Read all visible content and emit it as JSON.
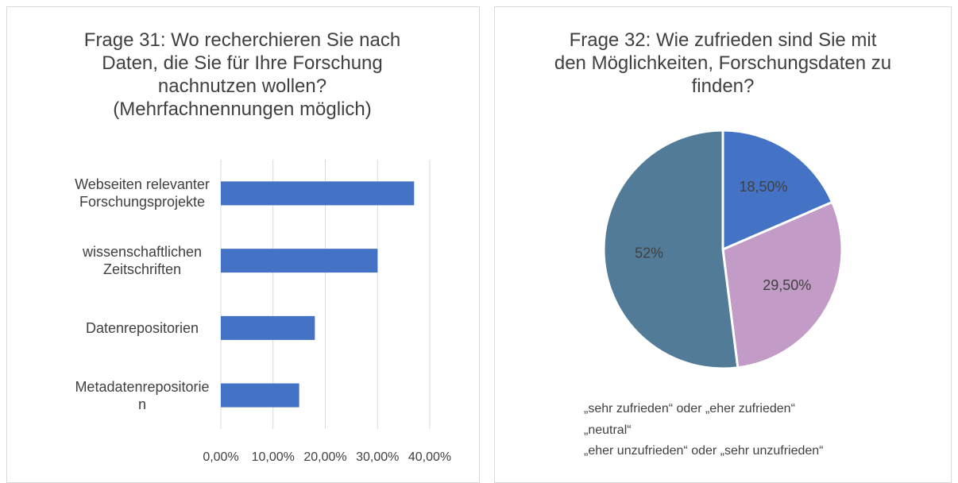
{
  "chart_data": [
    {
      "type": "hbar",
      "title": "Frage 31: Wo recherchieren Sie nach Daten, die Sie für Ihre Forschung nachnutzen wollen? (Mehrfachnennungen möglich)",
      "categories": [
        "Webseiten relevanter Forschungsprojekte",
        "wissenschaftlichen Zeitschriften",
        "Datenrepositorien",
        "Metadatenrepositorien"
      ],
      "values": [
        37,
        30,
        18,
        15
      ],
      "color": "#4472c4",
      "xlim": [
        0,
        40
      ],
      "xticks": [
        {
          "value": 0,
          "label": "0,00%"
        },
        {
          "value": 10,
          "label": "10,00%"
        },
        {
          "value": 20,
          "label": "20,00%"
        },
        {
          "value": 30,
          "label": "30,00%"
        },
        {
          "value": 40,
          "label": "40,00%"
        }
      ],
      "grid": true
    },
    {
      "type": "pie",
      "title": "Frage 32: Wie zufrieden sind Sie mit den Möglichkeiten, Forschungsdaten zu finden?",
      "categories": [
        "„sehr zufrieden“ oder „eher zufrieden“",
        "„neutral“",
        "„eher unzufrieden“ oder „sehr unzufrieden“"
      ],
      "values": [
        18.5,
        29.5,
        52
      ],
      "value_labels": [
        "18,50%",
        "29,50%",
        "52%"
      ],
      "colors": [
        "#4472c4",
        "#c39bc7",
        "#517b96"
      ],
      "legend": "bottom"
    }
  ]
}
